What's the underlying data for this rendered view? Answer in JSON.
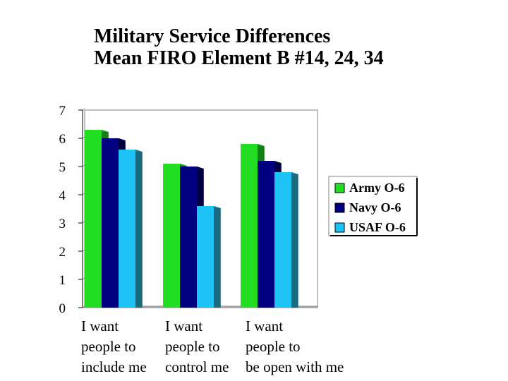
{
  "chart_data": {
    "type": "bar",
    "title": [
      "Military Service Differences",
      "Mean FIRO Element B #14, 24, 34"
    ],
    "categories": [
      "I want\npeople to\ninclude me",
      "I want\npeople to\ncontrol me",
      "I want\npeople to\nbe open with me"
    ],
    "series": [
      {
        "name": "Army O-6",
        "values": [
          6.3,
          5.1,
          5.8
        ],
        "color": "#22dd22",
        "side": "#128012",
        "topColor": "#1a9a1a"
      },
      {
        "name": "Navy O-6",
        "values": [
          6.0,
          5.0,
          5.2
        ],
        "color": "#000080",
        "side": "#000040",
        "topColor": "#000050"
      },
      {
        "name": "USAF O-6",
        "values": [
          5.6,
          3.6,
          4.8
        ],
        "color": "#1ec3f5",
        "side": "#1a6b80",
        "topColor": "#157a95"
      }
    ],
    "ylim": [
      0,
      7
    ],
    "yticks": [
      "0",
      "1",
      "2",
      "3",
      "4",
      "5",
      "6",
      "7"
    ],
    "legend_position": "right",
    "xlabel": "",
    "ylabel": ""
  }
}
